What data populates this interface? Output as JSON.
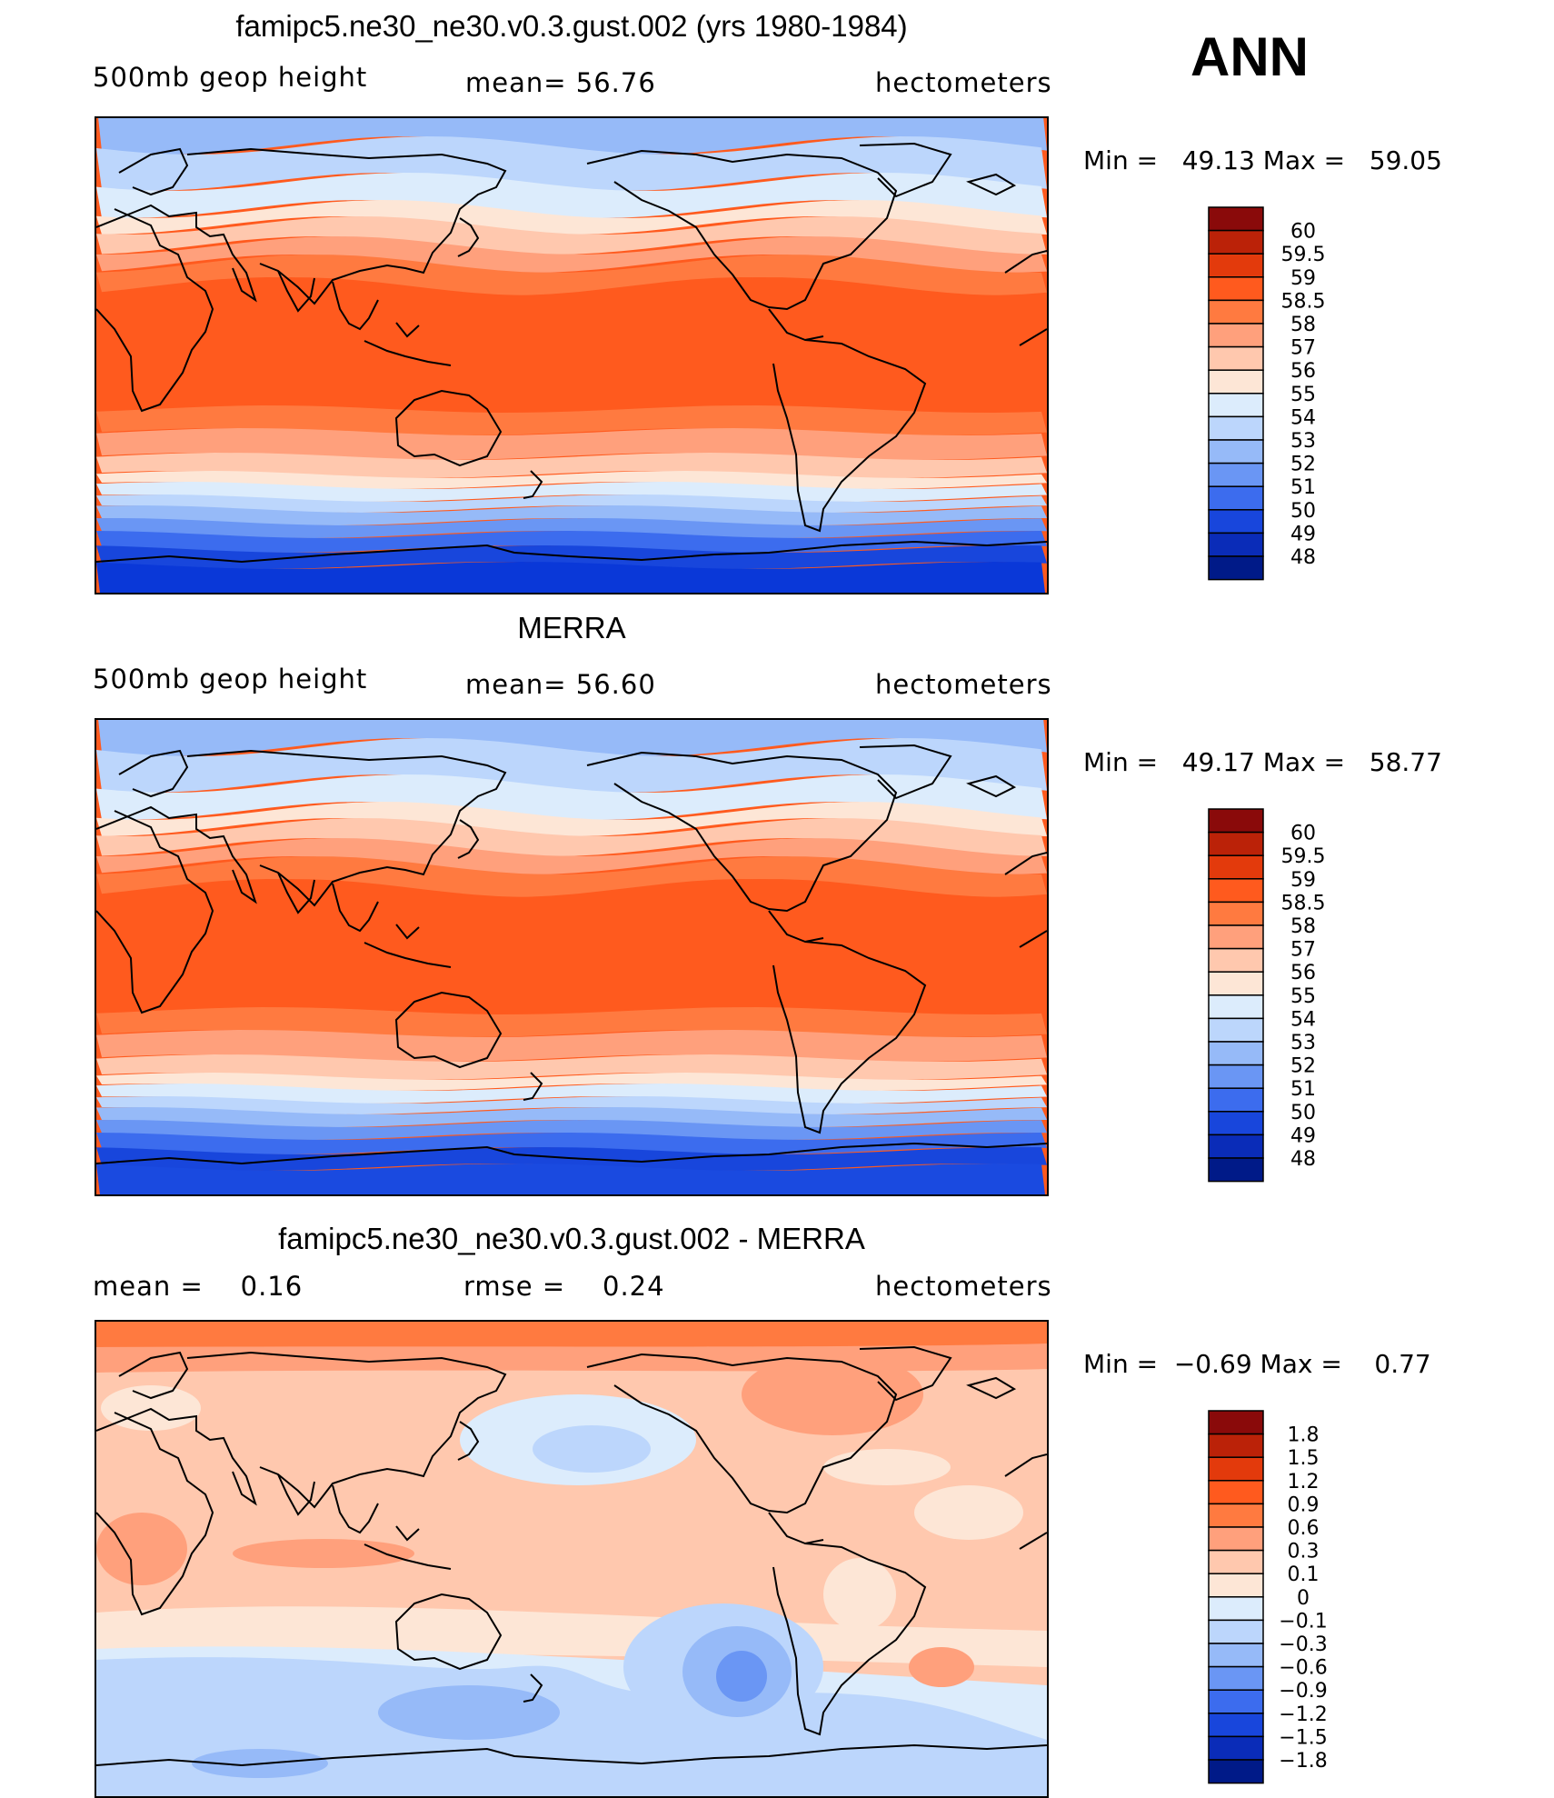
{
  "season_label": "ANN",
  "panels": [
    {
      "id": "model",
      "title": "famipc5.ne30_ne30.v0.3.gust.002 (yrs 1980-1984)",
      "left_label": "500mb geop height",
      "center_label": "mean=   56.76",
      "right_label": "hectometers",
      "minmax": "Min =   49.13 Max =   59.05",
      "colorbar": {
        "labels": [
          "60",
          "59.5",
          "59",
          "58.5",
          "58",
          "57",
          "56",
          "55",
          "54",
          "53",
          "52",
          "51",
          "50",
          "49",
          "48"
        ],
        "colors": [
          "#8a0a0a",
          "#bb2208",
          "#e33a0c",
          "#ff5a1e",
          "#ff7a40",
          "#ffa07c",
          "#ffc8ae",
          "#fde6d6",
          "#dcecfc",
          "#bcd6fc",
          "#96baf8",
          "#6a96f4",
          "#3c6cee",
          "#1846dc",
          "#0a2cb8",
          "#001a88"
        ]
      },
      "fill": {
        "equator": "#ff5a1e",
        "tropic": "#ff7a40",
        "subtropic": "#ffa07c",
        "mid": "#ffc8ae",
        "mid2": "#fde6d6",
        "subpolar": "#dcecfc",
        "polar": "#bcd6fc",
        "arctic": "#96baf8",
        "south1": "#6a96f4",
        "south2": "#3c6cee",
        "south3": "#1846dc",
        "antarctic": "#0a38d8"
      }
    },
    {
      "id": "obs",
      "title": "MERRA",
      "left_label": "500mb geop height",
      "center_label": "mean=   56.60",
      "right_label": "hectometers",
      "minmax": "Min =   49.17 Max =   58.77",
      "colorbar": {
        "labels": [
          "60",
          "59.5",
          "59",
          "58.5",
          "58",
          "57",
          "56",
          "55",
          "54",
          "53",
          "52",
          "51",
          "50",
          "49",
          "48"
        ],
        "colors": [
          "#8a0a0a",
          "#bb2208",
          "#e33a0c",
          "#ff5a1e",
          "#ff7a40",
          "#ffa07c",
          "#ffc8ae",
          "#fde6d6",
          "#dcecfc",
          "#bcd6fc",
          "#96baf8",
          "#6a96f4",
          "#3c6cee",
          "#1846dc",
          "#0a2cb8",
          "#001a88"
        ]
      },
      "fill": {
        "equator": "#ff5a1e",
        "tropic": "#ff7a40",
        "subtropic": "#ffa07c",
        "mid": "#ffc8ae",
        "mid2": "#fde6d6",
        "subpolar": "#dcecfc",
        "polar": "#bcd6fc",
        "arctic": "#96baf8",
        "south1": "#6a96f4",
        "south2": "#3c6cee",
        "south3": "#1846dc",
        "antarctic": "#1a4ae0"
      }
    },
    {
      "id": "diff",
      "title": "famipc5.ne30_ne30.v0.3.gust.002 - MERRA",
      "left_label": "mean =    0.16",
      "center_label": "rmse =    0.24",
      "right_label": "hectometers",
      "minmax": "Min =  −0.69 Max =    0.77",
      "colorbar": {
        "labels": [
          "1.8",
          "1.5",
          "1.2",
          "0.9",
          "0.6",
          "0.3",
          "0.1",
          "0",
          "−0.1",
          "−0.3",
          "−0.6",
          "−0.9",
          "−1.2",
          "−1.5",
          "−1.8"
        ],
        "colors": [
          "#8a0a0a",
          "#bb2208",
          "#e33a0c",
          "#ff5a1e",
          "#ff7a40",
          "#ffa07c",
          "#ffc8ae",
          "#fde6d6",
          "#dcecfc",
          "#bcd6fc",
          "#96baf8",
          "#6a96f4",
          "#3c6cee",
          "#1846dc",
          "#0a2cb8",
          "#001a88"
        ]
      }
    }
  ]
}
